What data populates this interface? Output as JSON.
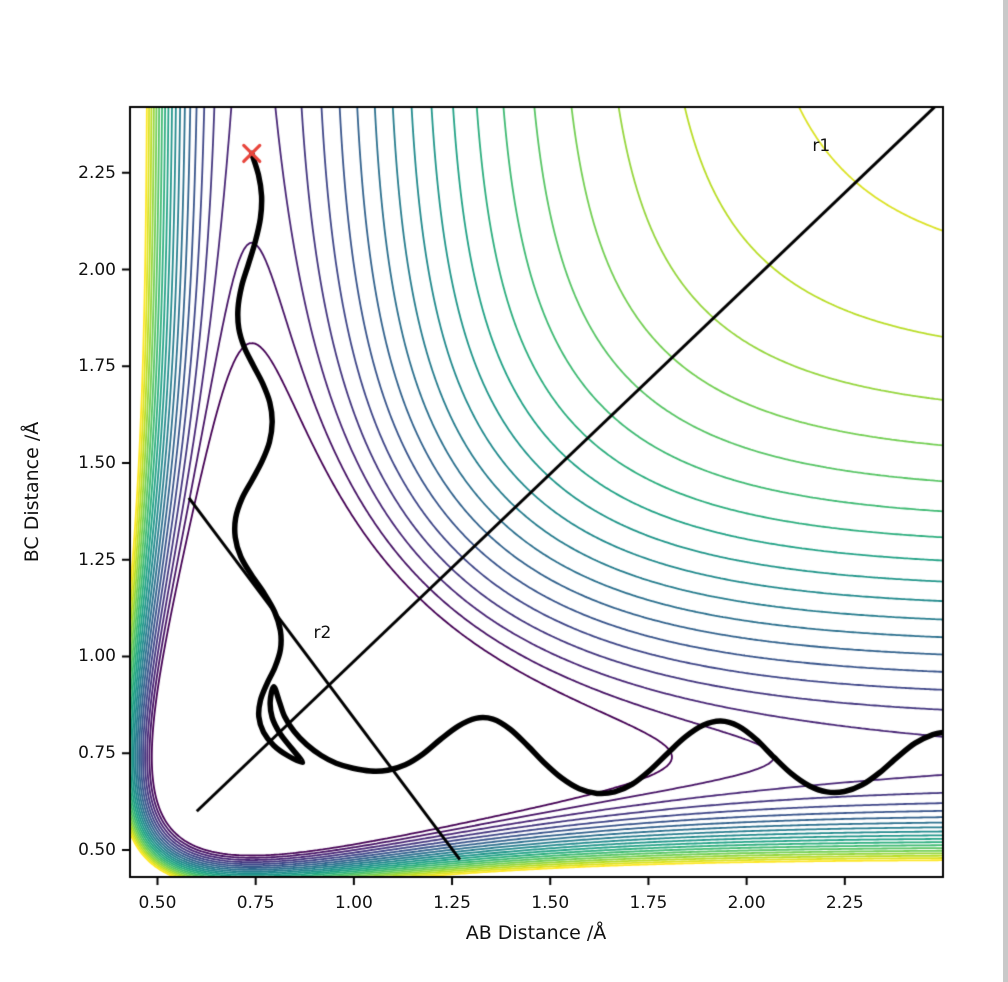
{
  "figure": {
    "background": "#ffffff"
  },
  "chart_data": {
    "type": "contour",
    "title": "",
    "xlabel": "AB Distance /Å",
    "ylabel": "BC Distance /Å",
    "xlim": [
      0.43,
      2.5
    ],
    "ylim": [
      0.43,
      2.42
    ],
    "xticks": [
      0.5,
      0.75,
      1.0,
      1.25,
      1.5,
      1.75,
      2.0,
      2.25
    ],
    "yticks": [
      0.5,
      0.75,
      1.0,
      1.25,
      1.5,
      1.75,
      2.0,
      2.25
    ],
    "grid": false,
    "legend": null,
    "surface": {
      "model": "morse_sum",
      "description": "V(rAB,rBC) = M(rAB) + M(rBC), M(r) = D*((1-exp(-a*(r-re)))^2 - 1)",
      "D": 1.0,
      "a": 2.6,
      "re": 0.74
    },
    "contours": {
      "level_min": -1.12,
      "level_max": -0.02,
      "level_count": 20,
      "colormap": "viridis",
      "line_width": 1.8
    },
    "viridis_stops": [
      [
        0.0,
        "#440154"
      ],
      [
        0.1,
        "#482475"
      ],
      [
        0.2,
        "#404387"
      ],
      [
        0.3,
        "#345e8d"
      ],
      [
        0.4,
        "#29788e"
      ],
      [
        0.5,
        "#20908c"
      ],
      [
        0.6,
        "#22a784"
      ],
      [
        0.7,
        "#44be70"
      ],
      [
        0.8,
        "#7ad151"
      ],
      [
        0.9,
        "#bdde26"
      ],
      [
        1.0,
        "#fde725"
      ]
    ],
    "axis_style": {
      "spine_color": "#000000",
      "tick_color": "#000000",
      "label_color": "#111111"
    },
    "reference_line_style": {
      "color": "#000000",
      "width": 3
    },
    "reference_lines": [
      {
        "label": "r1",
        "x1": 0.6,
        "y1": 0.6,
        "x2": 2.52,
        "y2": 2.46,
        "label_x": 2.19,
        "label_y": 2.32
      },
      {
        "label": "r2",
        "x1": 0.58,
        "y1": 1.41,
        "x2": 1.27,
        "y2": 0.475,
        "label_x": 0.92,
        "label_y": 1.06
      }
    ],
    "start_marker": {
      "symbol": "x",
      "color": "#e8453c",
      "x": 0.74,
      "y": 2.3,
      "size": 16,
      "stroke_width": 3.2
    },
    "trajectory": {
      "color": "#000000",
      "width": 5.5,
      "points": [
        [
          0.74,
          2.3
        ],
        [
          0.757,
          2.245
        ],
        [
          0.765,
          2.19
        ],
        [
          0.762,
          2.132
        ],
        [
          0.749,
          2.072
        ],
        [
          0.731,
          2.012
        ],
        [
          0.714,
          1.956
        ],
        [
          0.705,
          1.9
        ],
        [
          0.707,
          1.848
        ],
        [
          0.721,
          1.799
        ],
        [
          0.744,
          1.752
        ],
        [
          0.768,
          1.705
        ],
        [
          0.786,
          1.656
        ],
        [
          0.792,
          1.606
        ],
        [
          0.785,
          1.554
        ],
        [
          0.766,
          1.504
        ],
        [
          0.741,
          1.456
        ],
        [
          0.715,
          1.408
        ],
        [
          0.699,
          1.358
        ],
        [
          0.698,
          1.308
        ],
        [
          0.712,
          1.258
        ],
        [
          0.739,
          1.211
        ],
        [
          0.771,
          1.164
        ],
        [
          0.798,
          1.116
        ],
        [
          0.813,
          1.066
        ],
        [
          0.813,
          1.018
        ],
        [
          0.799,
          0.972
        ],
        [
          0.778,
          0.928
        ],
        [
          0.762,
          0.886
        ],
        [
          0.758,
          0.844
        ],
        [
          0.77,
          0.804
        ],
        [
          0.796,
          0.77
        ],
        [
          0.831,
          0.744
        ],
        [
          0.869,
          0.726
        ],
        [
          0.842,
          0.762
        ],
        [
          0.812,
          0.801
        ],
        [
          0.792,
          0.842
        ],
        [
          0.787,
          0.884
        ],
        [
          0.796,
          0.922
        ],
        [
          0.81,
          0.884
        ],
        [
          0.824,
          0.844
        ],
        [
          0.848,
          0.806
        ],
        [
          0.88,
          0.772
        ],
        [
          0.917,
          0.744
        ],
        [
          0.955,
          0.724
        ],
        [
          0.998,
          0.711
        ],
        [
          1.042,
          0.704
        ],
        [
          1.086,
          0.706
        ],
        [
          1.131,
          0.72
        ],
        [
          1.176,
          0.748
        ],
        [
          1.221,
          0.786
        ],
        [
          1.266,
          0.82
        ],
        [
          1.31,
          0.84
        ],
        [
          1.354,
          0.838
        ],
        [
          1.398,
          0.812
        ],
        [
          1.442,
          0.77
        ],
        [
          1.486,
          0.724
        ],
        [
          1.53,
          0.685
        ],
        [
          1.574,
          0.658
        ],
        [
          1.619,
          0.646
        ],
        [
          1.664,
          0.65
        ],
        [
          1.709,
          0.67
        ],
        [
          1.754,
          0.706
        ],
        [
          1.799,
          0.75
        ],
        [
          1.844,
          0.792
        ],
        [
          1.889,
          0.822
        ],
        [
          1.934,
          0.833
        ],
        [
          1.979,
          0.82
        ],
        [
          2.024,
          0.786
        ],
        [
          2.069,
          0.74
        ],
        [
          2.114,
          0.697
        ],
        [
          2.159,
          0.666
        ],
        [
          2.204,
          0.65
        ],
        [
          2.249,
          0.651
        ],
        [
          2.294,
          0.668
        ],
        [
          2.339,
          0.7
        ],
        [
          2.384,
          0.74
        ],
        [
          2.429,
          0.776
        ],
        [
          2.474,
          0.798
        ],
        [
          2.505,
          0.804
        ]
      ]
    }
  },
  "window": {
    "edge_strip_color": "#c9c9c9"
  }
}
